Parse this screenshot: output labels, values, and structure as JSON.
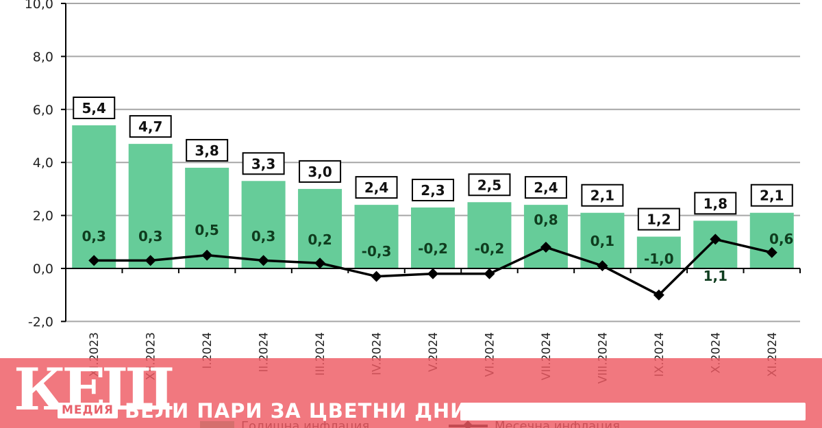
{
  "chart_data": {
    "type": "bar+line",
    "title": "",
    "xlabel": "",
    "ylabel": "",
    "ylim": [
      -2.0,
      10.0
    ],
    "yticks": [
      "-2,0",
      "0,0",
      "2,0",
      "4,0",
      "6,0",
      "8,0",
      "10,0"
    ],
    "ytick_values": [
      -2,
      0,
      2,
      4,
      6,
      8,
      10
    ],
    "grid": true,
    "legend_position": "bottom",
    "categories": [
      "XI.2023",
      "XII.2023",
      "I.2024",
      "II.2024",
      "III.2024",
      "IV.2024",
      "V.2024",
      "VI.2024",
      "VII.2024",
      "VIII.2024",
      "IX.2024",
      "X.2024",
      "XI.2024"
    ],
    "series": [
      {
        "name": "Годишна инфлация",
        "type": "bar",
        "color": "#66cc99",
        "values": [
          5.4,
          4.7,
          3.8,
          3.3,
          3.0,
          2.4,
          2.3,
          2.5,
          2.4,
          2.1,
          1.2,
          1.8,
          2.1
        ],
        "labels": [
          "5,4",
          "4,7",
          "3,8",
          "3,3",
          "3,0",
          "2,4",
          "2,3",
          "2,5",
          "2,4",
          "2,1",
          "1,2",
          "1,8",
          "2,1"
        ]
      },
      {
        "name": "Месечна инфлация",
        "type": "line",
        "color": "#000000",
        "marker": "diamond",
        "values": [
          0.3,
          0.3,
          0.5,
          0.3,
          0.2,
          -0.3,
          -0.2,
          -0.2,
          0.8,
          0.1,
          -1.0,
          1.1,
          0.6
        ],
        "labels": [
          "0,3",
          "0,3",
          "0,5",
          "0,3",
          "0,2",
          "-0,3",
          "-0,2",
          "-0,2",
          "0,8",
          "0,1",
          "-1,0",
          "1,1",
          "0,6"
        ]
      }
    ]
  },
  "legend": {
    "annual": "Годишна инфлация",
    "monthly": "Месечна инфлация"
  },
  "banner": {
    "logo_main": "КЕШ",
    "logo_sub": "МЕДИЯ",
    "slogan": "БЕЛИ ПАРИ ЗА ЦВЕТНИ ДНИ",
    "background": "#f0737a"
  },
  "colors": {
    "bar": "#66cc99",
    "line": "#000000",
    "grid": "#a6a6a6",
    "axis": "#000000"
  }
}
